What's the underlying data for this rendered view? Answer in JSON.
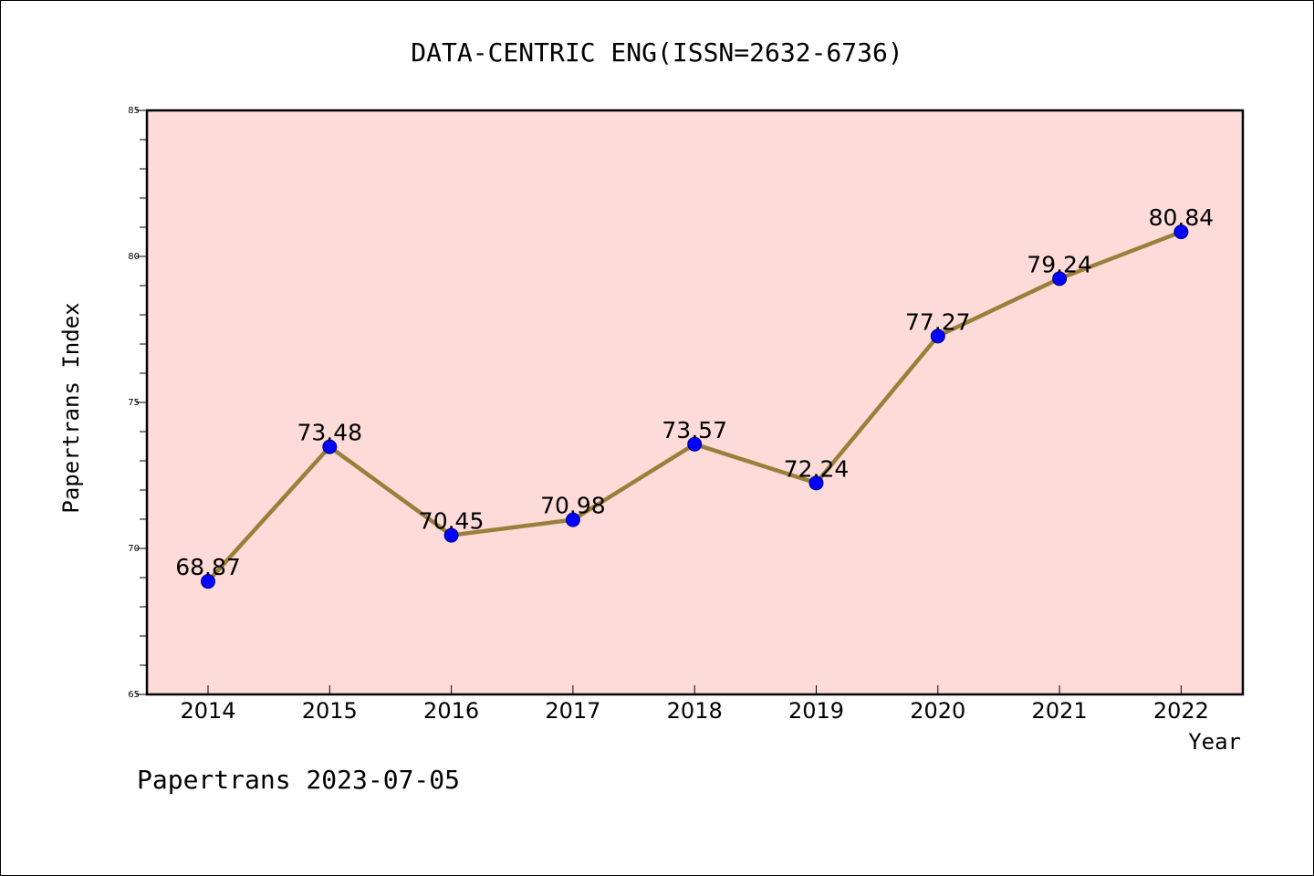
{
  "colors": {
    "plot_background": "#fddbd8",
    "line": "#9a7f3a",
    "marker": "#0000ff",
    "axes": "#000000"
  },
  "footer": {
    "text": "Papertrans 2023-07-05"
  },
  "chart_data": {
    "type": "line",
    "title": "DATA-CENTRIC ENG(ISSN=2632-6736)",
    "xlabel": "Year",
    "ylabel": "Papertrans Index",
    "categories": [
      "2014",
      "2015",
      "2016",
      "2017",
      "2018",
      "2019",
      "2020",
      "2021",
      "2022"
    ],
    "series": [
      {
        "values": [
          68.87,
          73.48,
          70.45,
          70.98,
          73.57,
          72.24,
          77.27,
          79.24,
          80.84
        ],
        "labels": [
          "68.87",
          "73.48",
          "70.45",
          "70.98",
          "73.57",
          "72.24",
          "77.27",
          "79.24",
          "80.84"
        ]
      }
    ],
    "ylim": [
      65,
      85
    ],
    "yticks": [
      "65",
      "70",
      "75",
      "80",
      "85"
    ],
    "grid": false,
    "legend": "none"
  }
}
